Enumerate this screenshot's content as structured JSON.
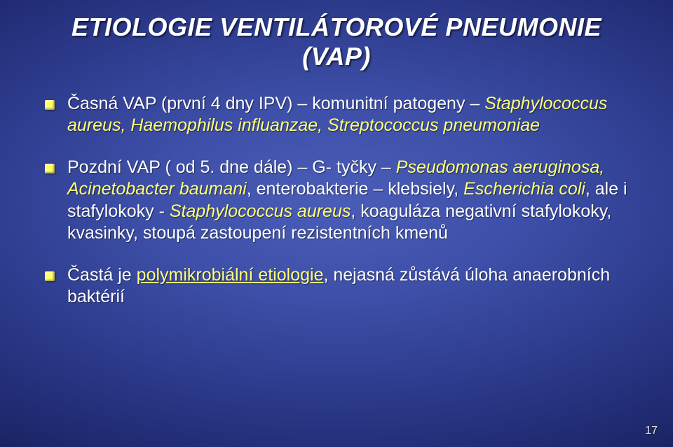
{
  "title_line1": "ETIOLOGIE VENTILÁTOROVÉ PNEUMONIE",
  "title_line2": "(VAP)",
  "bullets": [
    {
      "segments": [
        {
          "text": "Časná VAP (první 4 dny IPV) – komunitní patogeny – ",
          "cls": "white"
        },
        {
          "text": "Staphylococcus aureus, Haemophilus influanzae, Streptococcus pneumoniae",
          "cls": "yellow italic"
        }
      ]
    },
    {
      "segments": [
        {
          "text": "Pozdní VAP ( od 5. dne dále) – G- tyčky – ",
          "cls": "white"
        },
        {
          "text": "Pseudomonas aeruginosa, Acinetobacter baumani",
          "cls": "yellow italic"
        },
        {
          "text": ", enterobakterie – klebsiely, ",
          "cls": "white"
        },
        {
          "text": "Escherichia coli",
          "cls": "yellow italic"
        },
        {
          "text": ", ale i stafylokoky - ",
          "cls": "white"
        },
        {
          "text": "Staphylococcus aureus",
          "cls": "yellow italic"
        },
        {
          "text": ", koaguláza negativní stafylokoky, kvasinky, stoupá zastoupení rezistentních kmenů",
          "cls": "white"
        }
      ]
    },
    {
      "segments": [
        {
          "text": "Častá je ",
          "cls": "white"
        },
        {
          "text": "polymikrobiální etiologie",
          "cls": "yellow under"
        },
        {
          "text": ", nejasná zůstává úloha anaerobních baktérií",
          "cls": "white"
        }
      ]
    }
  ],
  "page_number": "17",
  "colors": {
    "title": "#ffffff",
    "body_white": "#ffffff",
    "body_yellow": "#ffff7a",
    "bullet_dot": "#ffff66",
    "bg_center": "#4a5db8",
    "bg_edge": "#020518"
  }
}
